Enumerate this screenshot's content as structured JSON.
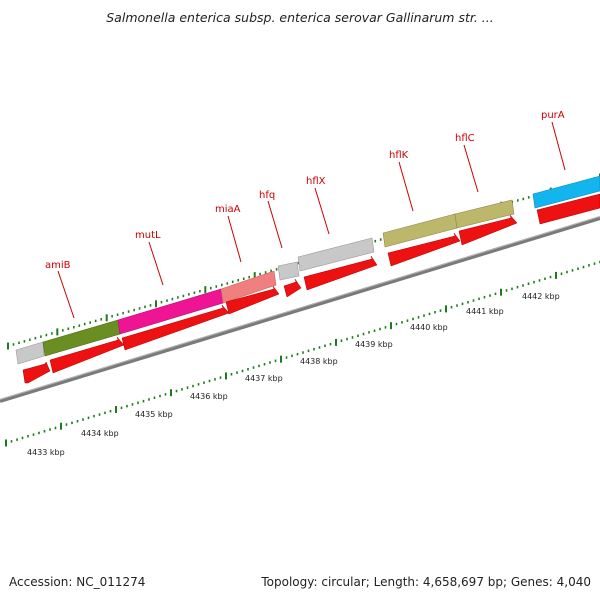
{
  "title": "Salmonella enterica subsp. enterica serovar Gallinarum str. ...",
  "footer": {
    "accession": "Accession: NC_011274",
    "summary": "Topology: circular; Length: 4,658,697 bp; Genes: 4,040"
  },
  "colors": {
    "backbone": "#8c8c8c",
    "ticks": "#1f7a1f",
    "gene_label": "#cc0000",
    "cds_arrow": "#ee1111",
    "grey_gene": "#c8c8c8",
    "olive_gene": "#6b8e23",
    "magenta_gene": "#ee1493",
    "salmon_gene": "#f08080",
    "khaki_gene": "#bdb76b",
    "cyan_gene": "#12b5ee"
  },
  "scale_labels": [
    "4433 kbp",
    "4434 kbp",
    "4435 kbp",
    "4436 kbp",
    "4437 kbp",
    "4438 kbp",
    "4439 kbp",
    "4440 kbp",
    "4441 kbp",
    "4442 kbp"
  ],
  "gene_labels": [
    "amiB",
    "mutL",
    "miaA",
    "hfq",
    "hflX",
    "hflK",
    "hflC",
    "purA"
  ],
  "genes": [
    {
      "color": "grey",
      "name": ""
    },
    {
      "color": "olive",
      "name": "amiB"
    },
    {
      "color": "magenta",
      "name": "mutL"
    },
    {
      "color": "salmon",
      "name": "miaA"
    },
    {
      "color": "grey",
      "name": "hfq"
    },
    {
      "color": "grey",
      "name": "hflX"
    },
    {
      "color": "khaki",
      "name": "hflK"
    },
    {
      "color": "khaki",
      "name": "hflC"
    },
    {
      "color": "cyan",
      "name": "purA"
    }
  ]
}
